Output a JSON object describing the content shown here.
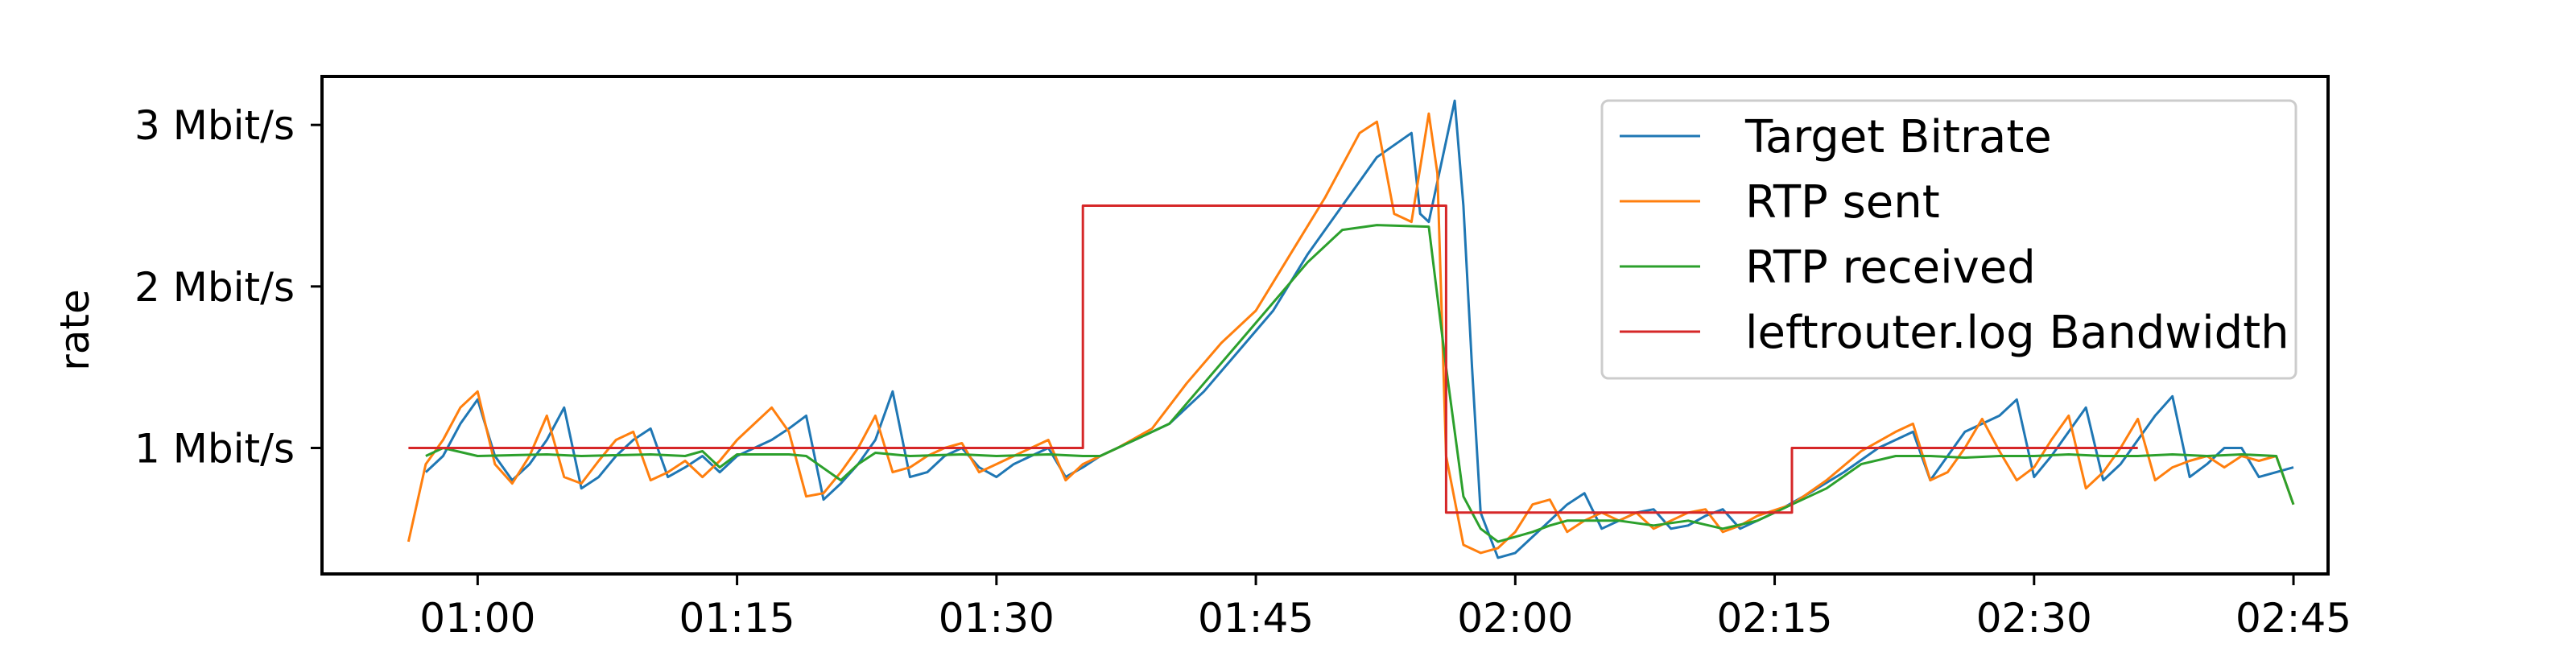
{
  "chart_data": {
    "type": "line",
    "title": "",
    "xlabel": "",
    "ylabel": "rate",
    "x_unit": "mm:ss",
    "y_unit": "Mbit/s",
    "xlim": [
      "00:51",
      "02:47"
    ],
    "ylim": [
      0.22,
      3.3
    ],
    "x_ticks": [
      "01:00",
      "01:15",
      "01:30",
      "01:45",
      "02:00",
      "02:15",
      "02:30",
      "02:45"
    ],
    "y_ticks": [
      {
        "value": 1,
        "label": "1 Mbit/s"
      },
      {
        "value": 2,
        "label": "2 Mbit/s"
      },
      {
        "value": 3,
        "label": "3 Mbit/s"
      }
    ],
    "grid": false,
    "legend_position": "top-right",
    "series": [
      {
        "name": "Target Bitrate",
        "color": "#1f77b4",
        "points": [
          [
            "00:57",
            0.85
          ],
          [
            "00:58",
            0.95
          ],
          [
            "00:59",
            1.15
          ],
          [
            "01:00",
            1.3
          ],
          [
            "01:01",
            0.95
          ],
          [
            "01:02",
            0.8
          ],
          [
            "01:03",
            0.9
          ],
          [
            "01:04",
            1.05
          ],
          [
            "01:05",
            1.25
          ],
          [
            "01:06",
            0.75
          ],
          [
            "01:07",
            0.82
          ],
          [
            "01:08",
            0.95
          ],
          [
            "01:09",
            1.05
          ],
          [
            "01:10",
            1.12
          ],
          [
            "01:11",
            0.82
          ],
          [
            "01:12",
            0.88
          ],
          [
            "01:13",
            0.95
          ],
          [
            "01:14",
            0.85
          ],
          [
            "01:15",
            0.95
          ],
          [
            "01:16",
            1.0
          ],
          [
            "01:17",
            1.05
          ],
          [
            "01:18",
            1.12
          ],
          [
            "01:19",
            1.2
          ],
          [
            "01:20",
            0.68
          ],
          [
            "01:21",
            0.78
          ],
          [
            "01:22",
            0.9
          ],
          [
            "01:23",
            1.05
          ],
          [
            "01:24",
            1.35
          ],
          [
            "01:25",
            0.82
          ],
          [
            "01:26",
            0.85
          ],
          [
            "01:27",
            0.95
          ],
          [
            "01:28",
            1.0
          ],
          [
            "01:29",
            0.88
          ],
          [
            "01:30",
            0.82
          ],
          [
            "01:31",
            0.9
          ],
          [
            "01:32",
            0.95
          ],
          [
            "01:33",
            1.0
          ],
          [
            "01:34",
            0.82
          ],
          [
            "01:35",
            0.88
          ],
          [
            "01:36",
            0.95
          ],
          [
            "01:38",
            1.05
          ],
          [
            "01:40",
            1.15
          ],
          [
            "01:42",
            1.35
          ],
          [
            "01:44",
            1.6
          ],
          [
            "01:46",
            1.85
          ],
          [
            "01:48",
            2.2
          ],
          [
            "01:50",
            2.5
          ],
          [
            "01:52",
            2.8
          ],
          [
            "01:54",
            2.95
          ],
          [
            "01:54.5",
            2.45
          ],
          [
            "01:55",
            2.4
          ],
          [
            "01:56",
            2.9
          ],
          [
            "01:56.5",
            3.15
          ],
          [
            "01:57",
            2.5
          ],
          [
            "01:57.5",
            1.5
          ],
          [
            "01:58",
            0.6
          ],
          [
            "01:59",
            0.32
          ],
          [
            "02:00",
            0.35
          ],
          [
            "02:01",
            0.45
          ],
          [
            "02:02",
            0.55
          ],
          [
            "02:03",
            0.65
          ],
          [
            "02:04",
            0.72
          ],
          [
            "02:05",
            0.5
          ],
          [
            "02:06",
            0.55
          ],
          [
            "02:07",
            0.6
          ],
          [
            "02:08",
            0.62
          ],
          [
            "02:09",
            0.5
          ],
          [
            "02:10",
            0.52
          ],
          [
            "02:11",
            0.58
          ],
          [
            "02:12",
            0.62
          ],
          [
            "02:13",
            0.5
          ],
          [
            "02:14",
            0.55
          ],
          [
            "02:15",
            0.6
          ],
          [
            "02:17",
            0.72
          ],
          [
            "02:19",
            0.85
          ],
          [
            "02:21",
            1.0
          ],
          [
            "02:23",
            1.1
          ],
          [
            "02:24",
            0.8
          ],
          [
            "02:25",
            0.95
          ],
          [
            "02:26",
            1.1
          ],
          [
            "02:28",
            1.2
          ],
          [
            "02:29",
            1.3
          ],
          [
            "02:30",
            0.82
          ],
          [
            "02:31",
            0.95
          ],
          [
            "02:32",
            1.1
          ],
          [
            "02:33",
            1.25
          ],
          [
            "02:34",
            0.8
          ],
          [
            "02:35",
            0.9
          ],
          [
            "02:36",
            1.05
          ],
          [
            "02:37",
            1.2
          ],
          [
            "02:38",
            1.32
          ],
          [
            "02:39",
            0.82
          ],
          [
            "02:40",
            0.9
          ],
          [
            "02:41",
            1.0
          ],
          [
            "02:42",
            1.0
          ],
          [
            "02:43",
            0.82
          ],
          [
            "02:44",
            0.85
          ],
          [
            "02:45",
            0.88
          ]
        ]
      },
      {
        "name": "RTP sent",
        "color": "#ff7f0e",
        "points": [
          [
            "00:56",
            0.42
          ],
          [
            "00:57",
            0.9
          ],
          [
            "00:58",
            1.05
          ],
          [
            "00:59",
            1.25
          ],
          [
            "01:00",
            1.35
          ],
          [
            "01:01",
            0.9
          ],
          [
            "01:02",
            0.78
          ],
          [
            "01:03",
            0.95
          ],
          [
            "01:04",
            1.2
          ],
          [
            "01:05",
            0.82
          ],
          [
            "01:06",
            0.78
          ],
          [
            "01:07",
            0.92
          ],
          [
            "01:08",
            1.05
          ],
          [
            "01:09",
            1.1
          ],
          [
            "01:10",
            0.8
          ],
          [
            "01:11",
            0.85
          ],
          [
            "01:12",
            0.92
          ],
          [
            "01:13",
            0.82
          ],
          [
            "01:14",
            0.92
          ],
          [
            "01:15",
            1.05
          ],
          [
            "01:16",
            1.15
          ],
          [
            "01:17",
            1.25
          ],
          [
            "01:18",
            1.1
          ],
          [
            "01:19",
            0.7
          ],
          [
            "01:20",
            0.72
          ],
          [
            "01:21",
            0.85
          ],
          [
            "01:22",
            1.0
          ],
          [
            "01:23",
            1.2
          ],
          [
            "01:24",
            0.85
          ],
          [
            "01:25",
            0.88
          ],
          [
            "01:26",
            0.95
          ],
          [
            "01:27",
            1.0
          ],
          [
            "01:28",
            1.03
          ],
          [
            "01:29",
            0.85
          ],
          [
            "01:30",
            0.9
          ],
          [
            "01:31",
            0.95
          ],
          [
            "01:32",
            1.0
          ],
          [
            "01:33",
            1.05
          ],
          [
            "01:34",
            0.8
          ],
          [
            "01:35",
            0.9
          ],
          [
            "01:37",
            1.0
          ],
          [
            "01:39",
            1.12
          ],
          [
            "01:41",
            1.4
          ],
          [
            "01:43",
            1.65
          ],
          [
            "01:45",
            1.85
          ],
          [
            "01:47",
            2.2
          ],
          [
            "01:49",
            2.55
          ],
          [
            "01:51",
            2.95
          ],
          [
            "01:52",
            3.02
          ],
          [
            "01:53",
            2.45
          ],
          [
            "01:54",
            2.4
          ],
          [
            "01:55",
            3.07
          ],
          [
            "01:55.5",
            2.7
          ],
          [
            "01:56",
            0.95
          ],
          [
            "01:57",
            0.4
          ],
          [
            "01:58",
            0.35
          ],
          [
            "01:59",
            0.38
          ],
          [
            "02:00",
            0.48
          ],
          [
            "02:01",
            0.65
          ],
          [
            "02:02",
            0.68
          ],
          [
            "02:03",
            0.48
          ],
          [
            "02:04",
            0.55
          ],
          [
            "02:05",
            0.6
          ],
          [
            "02:06",
            0.55
          ],
          [
            "02:07",
            0.6
          ],
          [
            "02:08",
            0.5
          ],
          [
            "02:09",
            0.55
          ],
          [
            "02:10",
            0.6
          ],
          [
            "02:11",
            0.62
          ],
          [
            "02:12",
            0.48
          ],
          [
            "02:13",
            0.52
          ],
          [
            "02:14",
            0.58
          ],
          [
            "02:16",
            0.65
          ],
          [
            "02:18",
            0.8
          ],
          [
            "02:20",
            0.98
          ],
          [
            "02:22",
            1.1
          ],
          [
            "02:23",
            1.15
          ],
          [
            "02:24",
            0.8
          ],
          [
            "02:25",
            0.85
          ],
          [
            "02:26",
            1.0
          ],
          [
            "02:27",
            1.18
          ],
          [
            "02:28",
            0.98
          ],
          [
            "02:29",
            0.8
          ],
          [
            "02:30",
            0.88
          ],
          [
            "02:31",
            1.05
          ],
          [
            "02:32",
            1.2
          ],
          [
            "02:33",
            0.75
          ],
          [
            "02:34",
            0.85
          ],
          [
            "02:35",
            1.0
          ],
          [
            "02:36",
            1.18
          ],
          [
            "02:37",
            0.8
          ],
          [
            "02:38",
            0.88
          ],
          [
            "02:39",
            0.92
          ],
          [
            "02:40",
            0.95
          ],
          [
            "02:41",
            0.88
          ],
          [
            "02:42",
            0.95
          ],
          [
            "02:43",
            0.92
          ],
          [
            "02:44",
            0.95
          ],
          [
            "02:45",
            0.65
          ]
        ]
      },
      {
        "name": "RTP received",
        "color": "#2ca02c",
        "points": [
          [
            "00:57",
            0.95
          ],
          [
            "00:58",
            1.0
          ],
          [
            "01:00",
            0.95
          ],
          [
            "01:04",
            0.96
          ],
          [
            "01:06",
            0.95
          ],
          [
            "01:10",
            0.96
          ],
          [
            "01:12",
            0.95
          ],
          [
            "01:13",
            0.98
          ],
          [
            "01:14",
            0.88
          ],
          [
            "01:15",
            0.96
          ],
          [
            "01:18",
            0.96
          ],
          [
            "01:19",
            0.95
          ],
          [
            "01:21",
            0.8
          ],
          [
            "01:22",
            0.9
          ],
          [
            "01:23",
            0.97
          ],
          [
            "01:25",
            0.95
          ],
          [
            "01:28",
            0.96
          ],
          [
            "01:30",
            0.95
          ],
          [
            "01:33",
            0.96
          ],
          [
            "01:35",
            0.95
          ],
          [
            "01:36",
            0.95
          ],
          [
            "01:38",
            1.05
          ],
          [
            "01:40",
            1.15
          ],
          [
            "01:42",
            1.4
          ],
          [
            "01:44",
            1.65
          ],
          [
            "01:46",
            1.9
          ],
          [
            "01:48",
            2.15
          ],
          [
            "01:50",
            2.35
          ],
          [
            "01:52",
            2.38
          ],
          [
            "01:55",
            2.37
          ],
          [
            "01:56",
            1.5
          ],
          [
            "01:57",
            0.7
          ],
          [
            "01:58",
            0.5
          ],
          [
            "01:59",
            0.42
          ],
          [
            "02:00",
            0.45
          ],
          [
            "02:01",
            0.48
          ],
          [
            "02:02",
            0.52
          ],
          [
            "02:03",
            0.55
          ],
          [
            "02:04",
            0.55
          ],
          [
            "02:06",
            0.55
          ],
          [
            "02:08",
            0.52
          ],
          [
            "02:10",
            0.55
          ],
          [
            "02:12",
            0.5
          ],
          [
            "02:14",
            0.55
          ],
          [
            "02:16",
            0.65
          ],
          [
            "02:18",
            0.75
          ],
          [
            "02:20",
            0.9
          ],
          [
            "02:22",
            0.95
          ],
          [
            "02:24",
            0.95
          ],
          [
            "02:26",
            0.94
          ],
          [
            "02:28",
            0.95
          ],
          [
            "02:30",
            0.95
          ],
          [
            "02:32",
            0.96
          ],
          [
            "02:34",
            0.95
          ],
          [
            "02:36",
            0.95
          ],
          [
            "02:38",
            0.96
          ],
          [
            "02:40",
            0.95
          ],
          [
            "02:42",
            0.96
          ],
          [
            "02:44",
            0.95
          ],
          [
            "02:45",
            0.65
          ]
        ]
      },
      {
        "name": "leftrouter.log Bandwidth",
        "color": "#d62728",
        "step": true,
        "points": [
          [
            "00:56",
            1.0
          ],
          [
            "01:35",
            1.0
          ],
          [
            "01:35",
            2.5
          ],
          [
            "01:56",
            2.5
          ],
          [
            "01:56",
            0.6
          ],
          [
            "02:16",
            0.6
          ],
          [
            "02:16",
            1.0
          ],
          [
            "02:36",
            1.0
          ]
        ]
      }
    ]
  }
}
